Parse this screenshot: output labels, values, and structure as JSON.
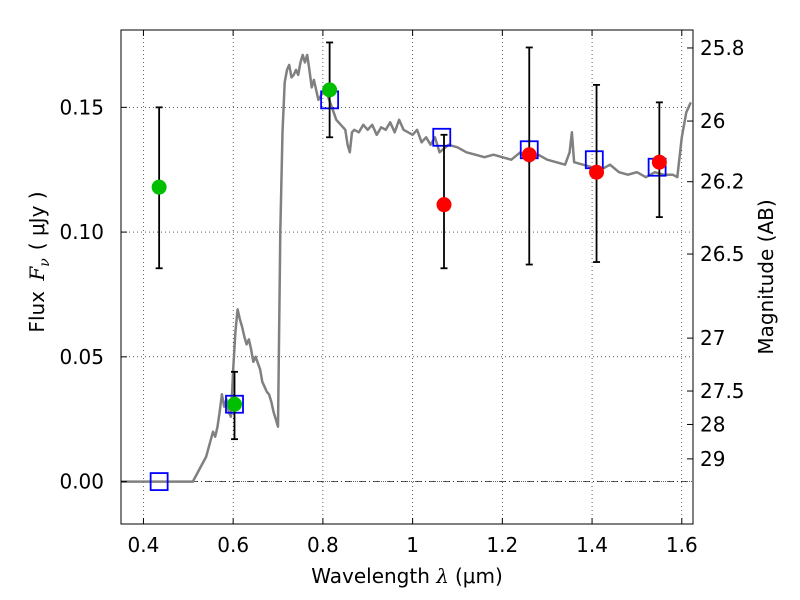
{
  "chart_data": {
    "type": "scatter",
    "xlabel": {
      "prefix": "Wavelength ",
      "symbol": "λ",
      "unit": "(μm)"
    },
    "ylabel": {
      "prefix": "Flux ",
      "symbol_main": "F",
      "symbol_sub": "ν",
      "unit": "( μJy )"
    },
    "y2label": "Magnitude (AB)",
    "xlim": [
      0.35,
      1.625
    ],
    "ylim": [
      -0.017,
      0.181
    ],
    "grid": true,
    "x_ticks": [
      {
        "value": 0.4,
        "label": "0.4"
      },
      {
        "value": 0.6,
        "label": "0.6"
      },
      {
        "value": 0.8,
        "label": "0.8"
      },
      {
        "value": 1.0,
        "label": "1"
      },
      {
        "value": 1.2,
        "label": "1.2"
      },
      {
        "value": 1.4,
        "label": "1.4"
      },
      {
        "value": 1.6,
        "label": "1.6"
      }
    ],
    "y_ticks": [
      {
        "value": 0.0,
        "label": "0.00"
      },
      {
        "value": 0.05,
        "label": "0.05"
      },
      {
        "value": 0.1,
        "label": "0.10"
      },
      {
        "value": 0.15,
        "label": "0.15"
      }
    ],
    "mag_ticks": [
      {
        "value": 0.1738,
        "label": "25.8"
      },
      {
        "value": 0.1445,
        "label": "26"
      },
      {
        "value": 0.1202,
        "label": "26.2"
      },
      {
        "value": 0.0912,
        "label": "26.5"
      },
      {
        "value": 0.0575,
        "label": "27"
      },
      {
        "value": 0.0363,
        "label": "27.5"
      },
      {
        "value": 0.0229,
        "label": "28"
      },
      {
        "value": 0.0091,
        "label": "29"
      }
    ],
    "series": [
      {
        "marker": "line",
        "color": "#808080",
        "x": [
          0.35,
          0.51,
          0.525,
          0.54,
          0.555,
          0.56,
          0.565,
          0.57,
          0.575,
          0.58,
          0.585,
          0.59,
          0.595,
          0.6,
          0.605,
          0.61,
          0.615,
          0.62,
          0.625,
          0.63,
          0.635,
          0.64,
          0.645,
          0.65,
          0.66,
          0.665,
          0.67,
          0.675,
          0.68,
          0.685,
          0.69,
          0.695,
          0.7,
          0.705,
          0.71,
          0.715,
          0.72,
          0.725,
          0.73,
          0.735,
          0.74,
          0.745,
          0.75,
          0.755,
          0.76,
          0.765,
          0.77,
          0.775,
          0.78,
          0.79,
          0.8,
          0.81,
          0.82,
          0.83,
          0.84,
          0.85,
          0.855,
          0.86,
          0.865,
          0.87,
          0.88,
          0.89,
          0.9,
          0.91,
          0.92,
          0.93,
          0.94,
          0.95,
          0.96,
          0.97,
          0.98,
          0.99,
          1.0,
          1.01,
          1.02,
          1.03,
          1.04,
          1.05,
          1.06,
          1.08,
          1.1,
          1.12,
          1.14,
          1.16,
          1.18,
          1.2,
          1.22,
          1.24,
          1.26,
          1.28,
          1.3,
          1.32,
          1.34,
          1.35,
          1.355,
          1.36,
          1.38,
          1.4,
          1.42,
          1.44,
          1.46,
          1.48,
          1.5,
          1.52,
          1.54,
          1.56,
          1.58,
          1.59,
          1.6,
          1.61,
          1.62
        ],
        "y": [
          0.0,
          0.0,
          0.005,
          0.01,
          0.02,
          0.018,
          0.022,
          0.028,
          0.035,
          0.03,
          0.033,
          0.028,
          0.026,
          0.045,
          0.06,
          0.069,
          0.065,
          0.062,
          0.058,
          0.055,
          0.057,
          0.053,
          0.048,
          0.05,
          0.045,
          0.04,
          0.038,
          0.036,
          0.035,
          0.032,
          0.028,
          0.025,
          0.022,
          0.1,
          0.14,
          0.16,
          0.165,
          0.167,
          0.162,
          0.163,
          0.165,
          0.163,
          0.168,
          0.171,
          0.168,
          0.171,
          0.165,
          0.158,
          0.161,
          0.153,
          0.156,
          0.155,
          0.15,
          0.145,
          0.143,
          0.141,
          0.135,
          0.132,
          0.14,
          0.141,
          0.14,
          0.143,
          0.141,
          0.143,
          0.139,
          0.142,
          0.141,
          0.144,
          0.14,
          0.145,
          0.141,
          0.14,
          0.139,
          0.141,
          0.136,
          0.138,
          0.135,
          0.138,
          0.132,
          0.135,
          0.134,
          0.132,
          0.131,
          0.13,
          0.131,
          0.13,
          0.129,
          0.132,
          0.128,
          0.131,
          0.129,
          0.128,
          0.127,
          0.132,
          0.14,
          0.128,
          0.127,
          0.126,
          0.125,
          0.127,
          0.124,
          0.123,
          0.124,
          0.122,
          0.124,
          0.123,
          0.123,
          0.122,
          0.138,
          0.148,
          0.152
        ]
      },
      {
        "marker": "open-square",
        "color": "#0000ff",
        "x": [
          0.435,
          0.603,
          0.815,
          1.065,
          1.26,
          1.405,
          1.545
        ],
        "y": [
          0.0,
          0.031,
          0.153,
          0.138,
          0.133,
          0.129,
          0.126
        ]
      },
      {
        "marker": "dot",
        "color": "#00bf00",
        "x": [
          0.435,
          0.603,
          0.815
        ],
        "y": [
          0.118,
          0.031,
          0.157
        ],
        "yerr_low": [
          0.0855,
          0.017,
          0.138
        ],
        "yerr_high": [
          0.15,
          0.044,
          0.176
        ]
      },
      {
        "marker": "dot",
        "color": "#ff0000",
        "x": [
          1.07,
          1.26,
          1.41,
          1.55
        ],
        "y": [
          0.111,
          0.131,
          0.124,
          0.128
        ],
        "yerr_low": [
          0.0855,
          0.087,
          0.088,
          0.106
        ],
        "yerr_high": [
          0.139,
          0.174,
          0.159,
          0.152
        ]
      }
    ]
  }
}
